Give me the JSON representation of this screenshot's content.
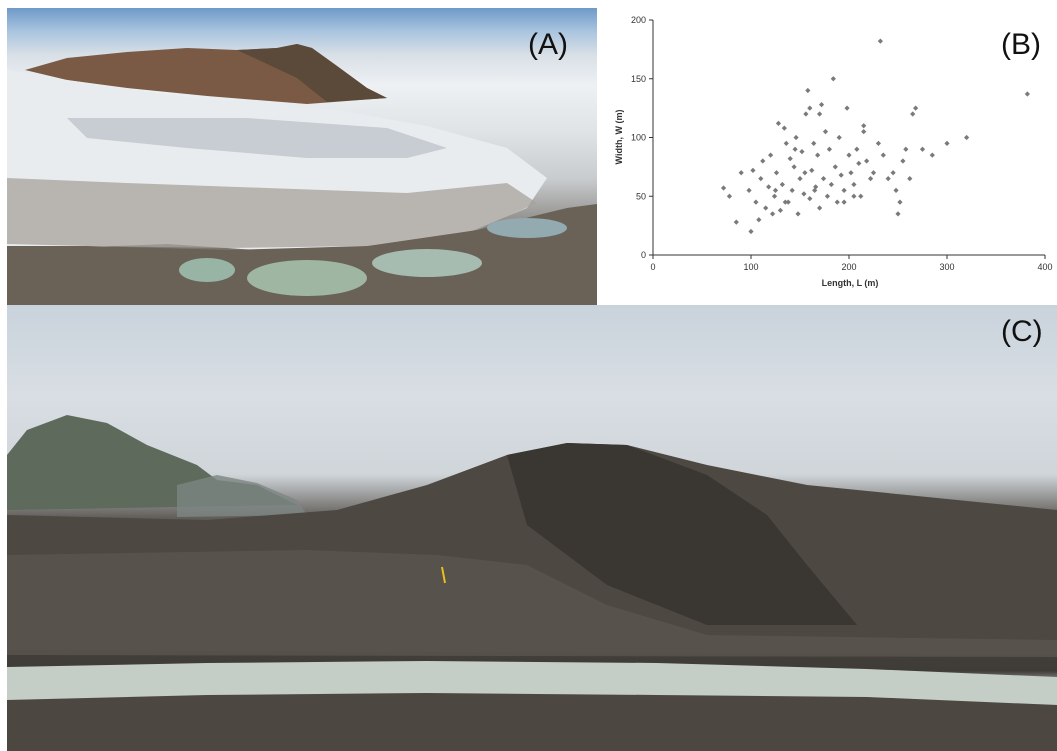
{
  "panels": {
    "a": {
      "label": "(A)"
    },
    "b": {
      "label": "(B)"
    },
    "c": {
      "label": "(C)"
    }
  },
  "chart_data": {
    "type": "scatter",
    "xlabel": "Length, L (m)",
    "ylabel": "Width, W (m)",
    "xlim": [
      0,
      400
    ],
    "ylim": [
      0,
      200
    ],
    "xticks": [
      0,
      100,
      200,
      300,
      400
    ],
    "yticks": [
      0,
      50,
      100,
      150,
      200
    ],
    "grid": false,
    "color": "#7a7a7a",
    "points": [
      [
        72,
        57
      ],
      [
        78,
        50
      ],
      [
        85,
        28
      ],
      [
        90,
        70
      ],
      [
        98,
        55
      ],
      [
        100,
        20
      ],
      [
        102,
        72
      ],
      [
        105,
        45
      ],
      [
        108,
        30
      ],
      [
        110,
        65
      ],
      [
        112,
        80
      ],
      [
        115,
        40
      ],
      [
        118,
        58
      ],
      [
        120,
        85
      ],
      [
        122,
        35
      ],
      [
        124,
        50
      ],
      [
        126,
        70
      ],
      [
        128,
        112
      ],
      [
        130,
        38
      ],
      [
        132,
        60
      ],
      [
        134,
        108
      ],
      [
        136,
        95
      ],
      [
        138,
        45
      ],
      [
        140,
        82
      ],
      [
        142,
        55
      ],
      [
        144,
        75
      ],
      [
        146,
        100
      ],
      [
        148,
        35
      ],
      [
        150,
        65
      ],
      [
        152,
        88
      ],
      [
        154,
        52
      ],
      [
        156,
        120
      ],
      [
        158,
        140
      ],
      [
        160,
        48
      ],
      [
        160,
        125
      ],
      [
        162,
        72
      ],
      [
        164,
        95
      ],
      [
        166,
        58
      ],
      [
        168,
        85
      ],
      [
        170,
        40
      ],
      [
        172,
        128
      ],
      [
        174,
        65
      ],
      [
        176,
        105
      ],
      [
        178,
        50
      ],
      [
        180,
        90
      ],
      [
        182,
        60
      ],
      [
        184,
        150
      ],
      [
        186,
        75
      ],
      [
        188,
        45
      ],
      [
        190,
        100
      ],
      [
        192,
        68
      ],
      [
        195,
        55
      ],
      [
        198,
        125
      ],
      [
        200,
        85
      ],
      [
        202,
        70
      ],
      [
        205,
        60
      ],
      [
        208,
        90
      ],
      [
        210,
        78
      ],
      [
        212,
        50
      ],
      [
        215,
        105
      ],
      [
        218,
        80
      ],
      [
        222,
        65
      ],
      [
        225,
        70
      ],
      [
        230,
        95
      ],
      [
        232,
        182
      ],
      [
        235,
        85
      ],
      [
        240,
        65
      ],
      [
        245,
        70
      ],
      [
        248,
        55
      ],
      [
        250,
        35
      ],
      [
        252,
        45
      ],
      [
        255,
        80
      ],
      [
        258,
        90
      ],
      [
        262,
        65
      ],
      [
        265,
        120
      ],
      [
        268,
        125
      ],
      [
        275,
        90
      ],
      [
        285,
        85
      ],
      [
        300,
        95
      ],
      [
        320,
        100
      ],
      [
        382,
        137
      ],
      [
        165,
        55
      ],
      [
        155,
        70
      ],
      [
        145,
        90
      ],
      [
        135,
        45
      ],
      [
        125,
        55
      ],
      [
        195,
        45
      ],
      [
        205,
        50
      ],
      [
        215,
        110
      ],
      [
        170,
        120
      ]
    ]
  }
}
